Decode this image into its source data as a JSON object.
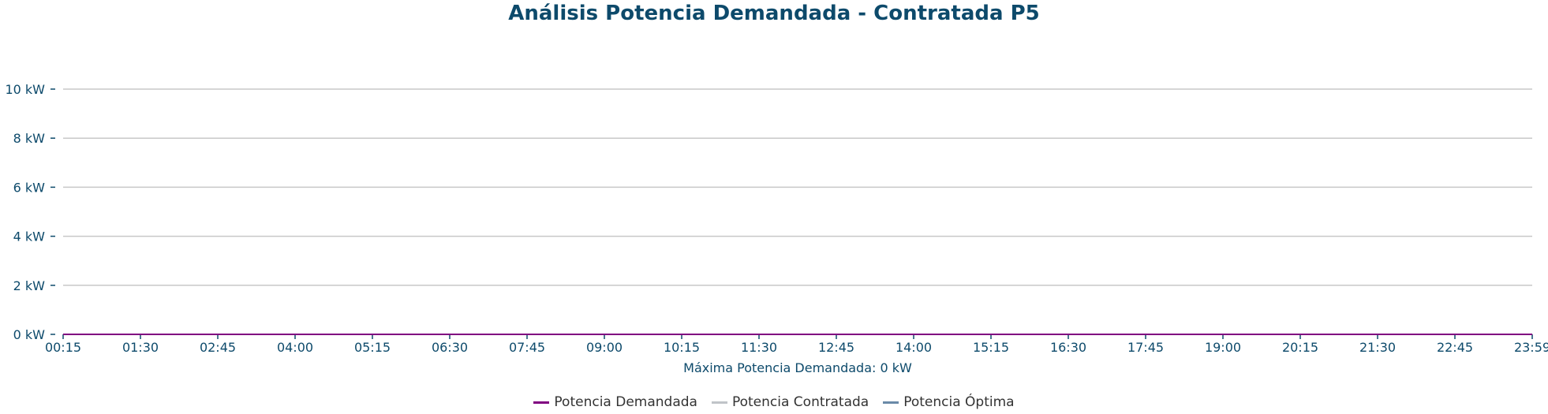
{
  "chart_data": {
    "type": "line",
    "title": "Análisis Potencia Demandada - Contratada P5",
    "xlabel": "Máxima Potencia Demandada: 0 kW",
    "ylabel": "",
    "y_ticks": [
      "0 kW",
      "2 kW",
      "4 kW",
      "6 kW",
      "8 kW",
      "10 kW"
    ],
    "y_tick_values": [
      0,
      2,
      4,
      6,
      8,
      10
    ],
    "ylim": [
      0,
      10
    ],
    "x_ticks": [
      "00:15",
      "01:30",
      "02:45",
      "04:00",
      "05:15",
      "06:30",
      "07:45",
      "09:00",
      "10:15",
      "11:30",
      "12:45",
      "14:00",
      "15:15",
      "16:30",
      "17:45",
      "19:00",
      "20:15",
      "21:30",
      "22:45",
      "23:59"
    ],
    "grid": true,
    "legend_position": "bottom",
    "series": [
      {
        "name": "Potencia Demandada",
        "color": "#800080",
        "values": [
          0,
          0
        ]
      },
      {
        "name": "Potencia Contratada",
        "color": "#c0c4c8",
        "values": [
          0,
          0
        ]
      },
      {
        "name": "Potencia Óptima",
        "color": "#6a8aa8",
        "values": [
          0,
          0
        ]
      }
    ],
    "colors": {
      "title": "#0d4a6b",
      "axis_text": "#0d4a6b",
      "grid": "#c8c8c8",
      "axis_line": "#0d4a6b"
    }
  }
}
